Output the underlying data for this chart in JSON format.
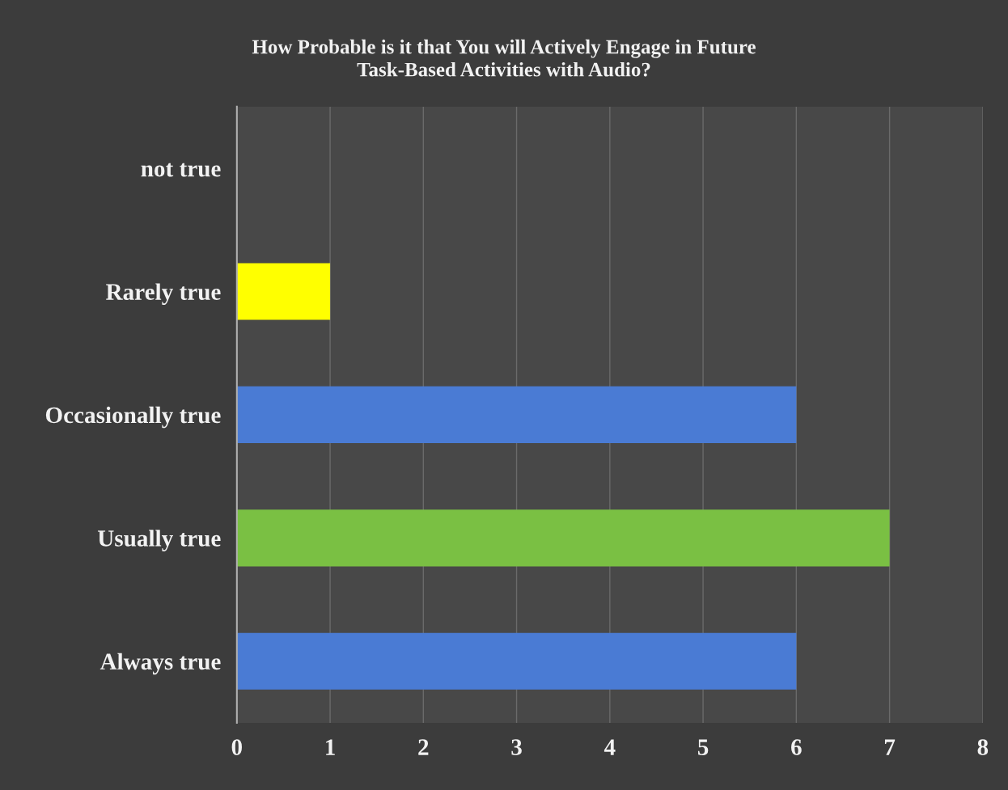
{
  "chart_data": {
    "type": "bar",
    "orientation": "horizontal",
    "title": "How Probable is it that You will Actively Engage in Future\nTask-Based Activities with Audio?",
    "categories": [
      "not true",
      "Rarely true",
      "Occasionally true",
      "Usually true",
      "Always true"
    ],
    "values": [
      0,
      1,
      6,
      7,
      6
    ],
    "colors": [
      "#ffff00",
      "#ffff00",
      "#4a7bd4",
      "#7ac043",
      "#4a7bd4"
    ],
    "xlim": [
      0,
      8
    ],
    "xticks": [
      0,
      1,
      2,
      3,
      4,
      5,
      6,
      7,
      8
    ],
    "grid": "x"
  }
}
